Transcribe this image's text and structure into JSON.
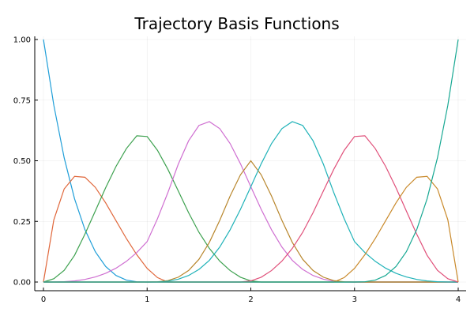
{
  "chart_data": {
    "type": "line",
    "title": "Trajectory Basis Functions",
    "xlabel": "",
    "ylabel": "",
    "xlim": [
      0,
      4
    ],
    "ylim": [
      0,
      1
    ],
    "x_ticks": [
      0,
      1,
      2,
      3,
      4
    ],
    "y_ticks": [
      0.0,
      0.25,
      0.5,
      0.75,
      1.0
    ],
    "x_tick_labels": [
      "0",
      "1",
      "2",
      "3",
      "4"
    ],
    "y_tick_labels": [
      "0.00",
      "0.25",
      "0.50",
      "0.75",
      "1.00"
    ],
    "grid": true,
    "legend": "none",
    "x": [
      0,
      0.1,
      0.2,
      0.3,
      0.4,
      0.5,
      0.6,
      0.7,
      0.8,
      0.9,
      1.0,
      1.1,
      1.2,
      1.3,
      1.4,
      1.5,
      1.6,
      1.7,
      1.8,
      1.9,
      2.0,
      2.1,
      2.2,
      2.3,
      2.4,
      2.5,
      2.6,
      2.7,
      2.8,
      2.9,
      3.0,
      3.1,
      3.2,
      3.3,
      3.4,
      3.5,
      3.6,
      3.7,
      3.8,
      3.9,
      4.0
    ],
    "series": [
      {
        "color": "#1f9ed8",
        "values": [
          1.0,
          0.729,
          0.512,
          0.343,
          0.216,
          0.125,
          0.064,
          0.027,
          0.008,
          0.001,
          0,
          0,
          0,
          0,
          0,
          0,
          0,
          0,
          0,
          0,
          0,
          0,
          0,
          0,
          0,
          0,
          0,
          0,
          0,
          0,
          0,
          0,
          0,
          0,
          0,
          0,
          0,
          0,
          0,
          0,
          0
        ]
      },
      {
        "color": "#e0673b",
        "values": [
          0,
          0.2565,
          0.384,
          0.4357,
          0.432,
          0.3906,
          0.3264,
          0.2527,
          0.1792,
          0.1127,
          0.0563,
          0.0182,
          0,
          0,
          0,
          0,
          0,
          0,
          0,
          0,
          0,
          0,
          0,
          0,
          0,
          0,
          0,
          0,
          0,
          0,
          0,
          0,
          0,
          0,
          0,
          0,
          0,
          0,
          0,
          0,
          0
        ]
      },
      {
        "color": "#3da14f",
        "values": [
          0,
          0.0135,
          0.048,
          0.1102,
          0.1973,
          0.2929,
          0.3888,
          0.4768,
          0.5504,
          0.6031,
          0.6,
          0.5429,
          0.4648,
          0.3758,
          0.2858,
          0.2049,
          0.1388,
          0.0864,
          0.0474,
          0.0198,
          0.0048,
          0,
          0,
          0,
          0,
          0,
          0,
          0,
          0,
          0,
          0,
          0,
          0,
          0,
          0,
          0,
          0,
          0,
          0,
          0,
          0
        ]
      },
      {
        "color": "#cf6fd1",
        "values": [
          0,
          0.0002,
          0.0013,
          0.0045,
          0.0107,
          0.0208,
          0.036,
          0.0572,
          0.0853,
          0.1215,
          0.1667,
          0.2613,
          0.3688,
          0.4857,
          0.5824,
          0.6458,
          0.6613,
          0.6327,
          0.5712,
          0.4876,
          0.3929,
          0.2997,
          0.2152,
          0.1441,
          0.0894,
          0.0521,
          0.0269,
          0.0115,
          0.0034,
          0.0004,
          0,
          0,
          0,
          0,
          0,
          0,
          0,
          0,
          0,
          0,
          0
        ]
      },
      {
        "color": "#b8862c",
        "values": [
          0,
          0,
          0,
          0,
          0,
          0,
          0,
          0,
          0,
          0,
          0,
          0.0008,
          0.0059,
          0.0199,
          0.0477,
          0.0938,
          0.1635,
          0.2541,
          0.3541,
          0.4421,
          0.5,
          0.4421,
          0.3541,
          0.2541,
          0.1635,
          0.0938,
          0.0477,
          0.0199,
          0.0059,
          0.0008,
          0,
          0,
          0,
          0,
          0,
          0,
          0,
          0,
          0,
          0,
          0
        ]
      },
      {
        "color": "#1fb2b8",
        "values": [
          0,
          0,
          0,
          0,
          0,
          0,
          0,
          0,
          0,
          0,
          0,
          0.0004,
          0.0034,
          0.0115,
          0.0269,
          0.0521,
          0.0894,
          0.1441,
          0.2152,
          0.2997,
          0.3929,
          0.4876,
          0.5712,
          0.6327,
          0.6613,
          0.6458,
          0.5824,
          0.4857,
          0.3688,
          0.2613,
          0.1667,
          0.1215,
          0.0853,
          0.0572,
          0.036,
          0.0208,
          0.0107,
          0.0045,
          0.0013,
          0.0002,
          0
        ]
      },
      {
        "color": "#e0507a",
        "values": [
          0,
          0,
          0,
          0,
          0,
          0,
          0,
          0,
          0,
          0,
          0,
          0,
          0,
          0,
          0,
          0,
          0,
          0,
          0,
          0,
          0.0048,
          0.0198,
          0.0474,
          0.0864,
          0.1388,
          0.2049,
          0.2858,
          0.3758,
          0.4648,
          0.5429,
          0.6,
          0.6031,
          0.5504,
          0.4768,
          0.3888,
          0.2929,
          0.1973,
          0.1102,
          0.048,
          0.0135,
          0
        ]
      },
      {
        "color": "#c9892a",
        "values": [
          0,
          0,
          0,
          0,
          0,
          0,
          0,
          0,
          0,
          0,
          0,
          0,
          0,
          0,
          0,
          0,
          0,
          0,
          0,
          0,
          0,
          0,
          0,
          0,
          0,
          0,
          0,
          0,
          0,
          0.0182,
          0.0563,
          0.1127,
          0.1792,
          0.2527,
          0.3264,
          0.3906,
          0.432,
          0.4357,
          0.384,
          0.2565,
          0
        ]
      },
      {
        "color": "#18a893",
        "values": [
          0,
          0,
          0,
          0,
          0,
          0,
          0,
          0,
          0,
          0,
          0,
          0,
          0,
          0,
          0,
          0,
          0,
          0,
          0,
          0,
          0,
          0,
          0,
          0,
          0,
          0,
          0,
          0,
          0,
          0,
          0,
          0.001,
          0.008,
          0.027,
          0.064,
          0.125,
          0.216,
          0.343,
          0.512,
          0.729,
          1.0
        ]
      }
    ]
  }
}
